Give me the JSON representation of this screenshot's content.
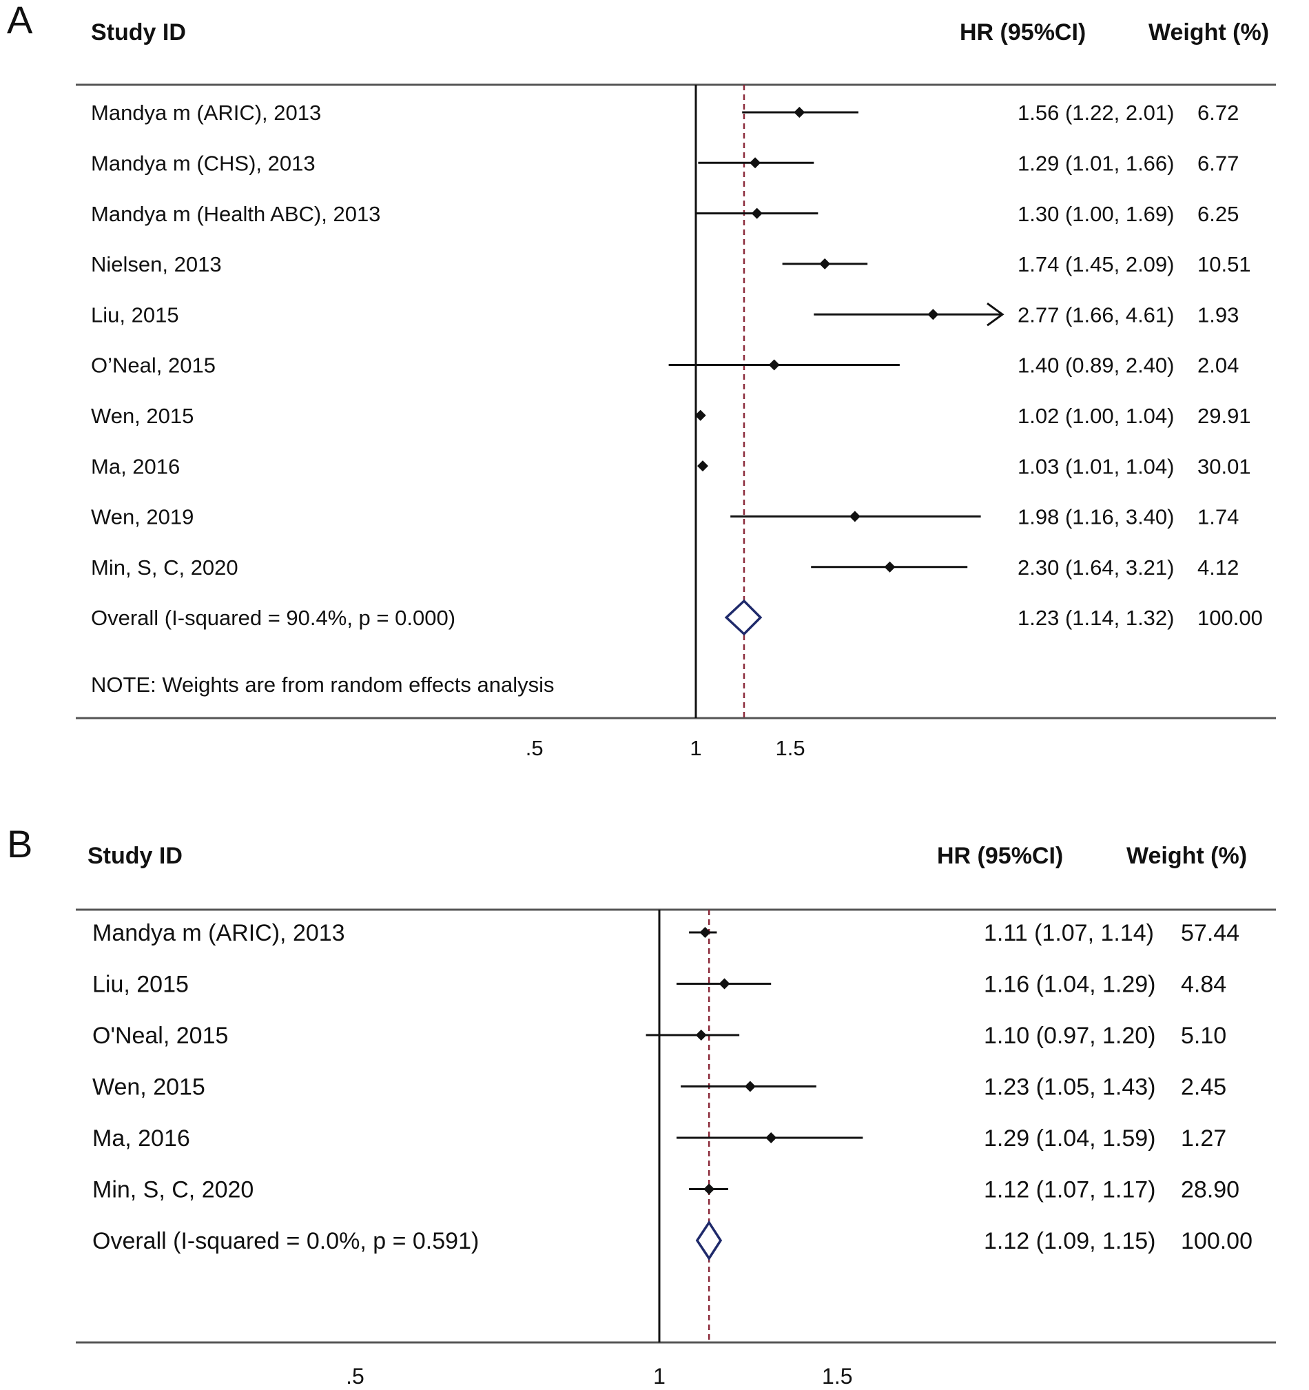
{
  "chart_data": [
    {
      "type": "forest",
      "panel_label": "A",
      "headers": {
        "study": "Study ID",
        "hr": "HR (95%CI)",
        "weight": "Weight (%)"
      },
      "studies": [
        {
          "name": "Mandya m (ARIC), 2013",
          "hr": 1.56,
          "lo": 1.22,
          "hi": 2.01,
          "hr_text": "1.56 (1.22, 2.01)",
          "weight": "6.72"
        },
        {
          "name": "Mandya m (CHS),  2013",
          "hr": 1.29,
          "lo": 1.01,
          "hi": 1.66,
          "hr_text": "1.29 (1.01, 1.66)",
          "weight": "6.77"
        },
        {
          "name": "Mandya m (Health ABC), 2013",
          "hr": 1.3,
          "lo": 1.0,
          "hi": 1.69,
          "hr_text": "1.30 (1.00, 1.69)",
          "weight": "6.25"
        },
        {
          "name": "Nielsen, 2013",
          "hr": 1.74,
          "lo": 1.45,
          "hi": 2.09,
          "hr_text": "1.74 (1.45, 2.09)",
          "weight": "10.51"
        },
        {
          "name": "Liu, 2015",
          "hr": 2.77,
          "lo": 1.66,
          "hi": 4.61,
          "hr_text": "2.77 (1.66, 4.61)",
          "weight": "1.93",
          "arrow": true
        },
        {
          "name": "O’Neal, 2015",
          "hr": 1.4,
          "lo": 0.89,
          "hi": 2.4,
          "hr_text": "1.40 (0.89, 2.40)",
          "weight": "2.04"
        },
        {
          "name": "Wen, 2015",
          "hr": 1.02,
          "lo": 1.0,
          "hi": 1.04,
          "hr_text": "1.02 (1.00, 1.04)",
          "weight": "29.91"
        },
        {
          "name": "Ma, 2016",
          "hr": 1.03,
          "lo": 1.01,
          "hi": 1.04,
          "hr_text": "1.03 (1.01, 1.04)",
          "weight": "30.01"
        },
        {
          "name": "Wen, 2019",
          "hr": 1.98,
          "lo": 1.16,
          "hi": 3.4,
          "hr_text": "1.98 (1.16, 3.40)",
          "weight": "1.74"
        },
        {
          "name": "Min, S, C, 2020",
          "hr": 2.3,
          "lo": 1.64,
          "hi": 3.21,
          "hr_text": "2.30 (1.64, 3.21)",
          "weight": "4.12"
        }
      ],
      "overall": {
        "name": "Overall  (I-squared = 90.4%, p = 0.000)",
        "hr": 1.23,
        "lo": 1.14,
        "hi": 1.32,
        "hr_text": "1.23 (1.14, 1.32)",
        "weight": "100.00"
      },
      "note": "NOTE: Weights are from random effects analysis",
      "x_ticks": [
        {
          "value": 0.5,
          "label": ".5"
        },
        {
          "value": 1,
          "label": "1"
        },
        {
          "value": 1.5,
          "label": "1.5"
        }
      ],
      "x_scale": "log",
      "reference_line": 1
    },
    {
      "type": "forest",
      "panel_label": "B",
      "headers": {
        "study": "Study ID",
        "hr": "HR (95%CI)",
        "weight": "Weight (%)"
      },
      "studies": [
        {
          "name": "Mandya m (ARIC), 2013",
          "hr": 1.11,
          "lo": 1.07,
          "hi": 1.14,
          "hr_text": "1.11 (1.07, 1.14)",
          "weight": "57.44"
        },
        {
          "name": "Liu, 2015",
          "hr": 1.16,
          "lo": 1.04,
          "hi": 1.29,
          "hr_text": "1.16 (1.04, 1.29)",
          "weight": "4.84"
        },
        {
          "name": "O'Neal, 2015",
          "hr": 1.1,
          "lo": 0.97,
          "hi": 1.2,
          "hr_text": "1.10 (0.97, 1.20)",
          "weight": "5.10"
        },
        {
          "name": "Wen, 2015",
          "hr": 1.23,
          "lo": 1.05,
          "hi": 1.43,
          "hr_text": "1.23 (1.05, 1.43)",
          "weight": "2.45"
        },
        {
          "name": "Ma, 2016",
          "hr": 1.29,
          "lo": 1.04,
          "hi": 1.59,
          "hr_text": "1.29 (1.04, 1.59)",
          "weight": "1.27"
        },
        {
          "name": "Min, S, C, 2020",
          "hr": 1.12,
          "lo": 1.07,
          "hi": 1.17,
          "hr_text": "1.12 (1.07, 1.17)",
          "weight": "28.90"
        }
      ],
      "overall": {
        "name": "Overall  (I-squared = 0.0%, p = 0.591)",
        "hr": 1.12,
        "lo": 1.09,
        "hi": 1.15,
        "hr_text": "1.12 (1.09, 1.15)",
        "weight": "100.00"
      },
      "note": "",
      "x_ticks": [
        {
          "value": 0.5,
          "label": ".5"
        },
        {
          "value": 1,
          "label": "1"
        },
        {
          "value": 1.5,
          "label": "1.5"
        }
      ],
      "x_scale": "log",
      "reference_line": 1
    }
  ],
  "colors": {
    "ink": "#111111",
    "reference_dash": "#8b2a3a",
    "diamond": "#1f2a6b",
    "rule": "#555555"
  }
}
